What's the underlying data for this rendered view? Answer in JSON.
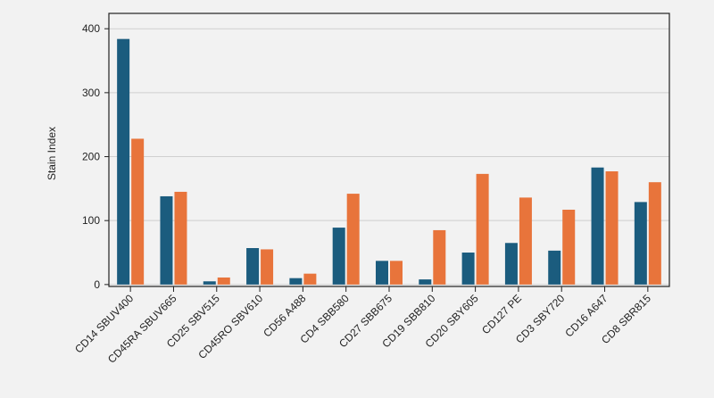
{
  "chart_data": {
    "type": "bar",
    "y_label": "Stain Index",
    "categories": [
      "CD14 SBUV400",
      "CD45RA SBUV665",
      "CD25 SBV515",
      "CD45RO SBV610",
      "CD56 A488",
      "CD4 SBB580",
      "CD27 SBB675",
      "CD19 SBB810",
      "CD20 SBY605",
      "CD127 PE",
      "CD3 SBY720",
      "CD16 A647",
      "CD8 SBR815"
    ],
    "series": [
      {
        "color": "#1b5c7e",
        "values": [
          384,
          138,
          5,
          57,
          10,
          89,
          37,
          8,
          50,
          65,
          53,
          183,
          129
        ]
      },
      {
        "color": "#e8743b",
        "values": [
          228,
          145,
          11,
          55,
          17,
          142,
          37,
          85,
          173,
          136,
          117,
          177,
          160
        ]
      }
    ],
    "ylim": [
      -3,
      424
    ],
    "yticks": [
      0,
      100,
      200,
      300,
      400
    ],
    "grid": true
  }
}
